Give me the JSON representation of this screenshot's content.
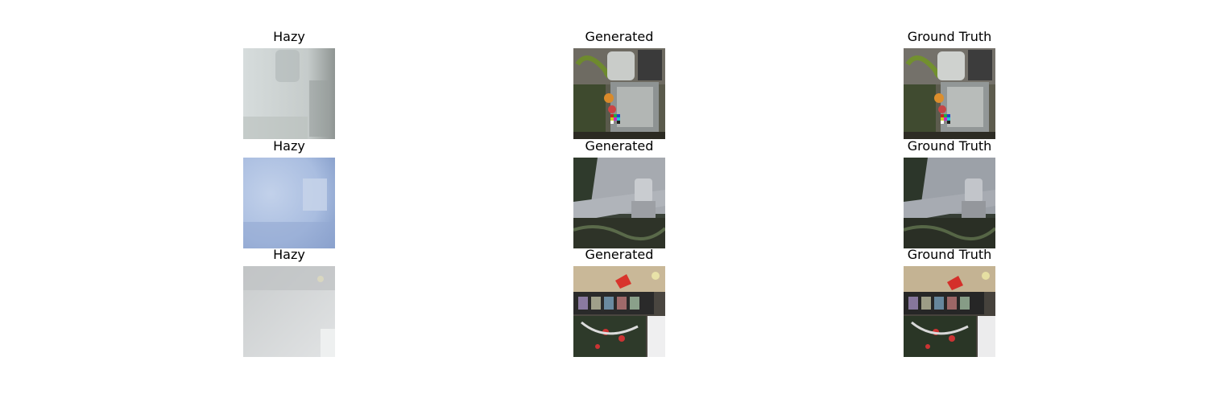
{
  "panels": [
    {
      "title": "Hazy"
    },
    {
      "title": "Generated"
    },
    {
      "title": "Ground Truth"
    },
    {
      "title": "Hazy"
    },
    {
      "title": "Generated"
    },
    {
      "title": "Ground Truth"
    },
    {
      "title": "Hazy"
    },
    {
      "title": "Generated"
    },
    {
      "title": "Ground Truth"
    }
  ]
}
